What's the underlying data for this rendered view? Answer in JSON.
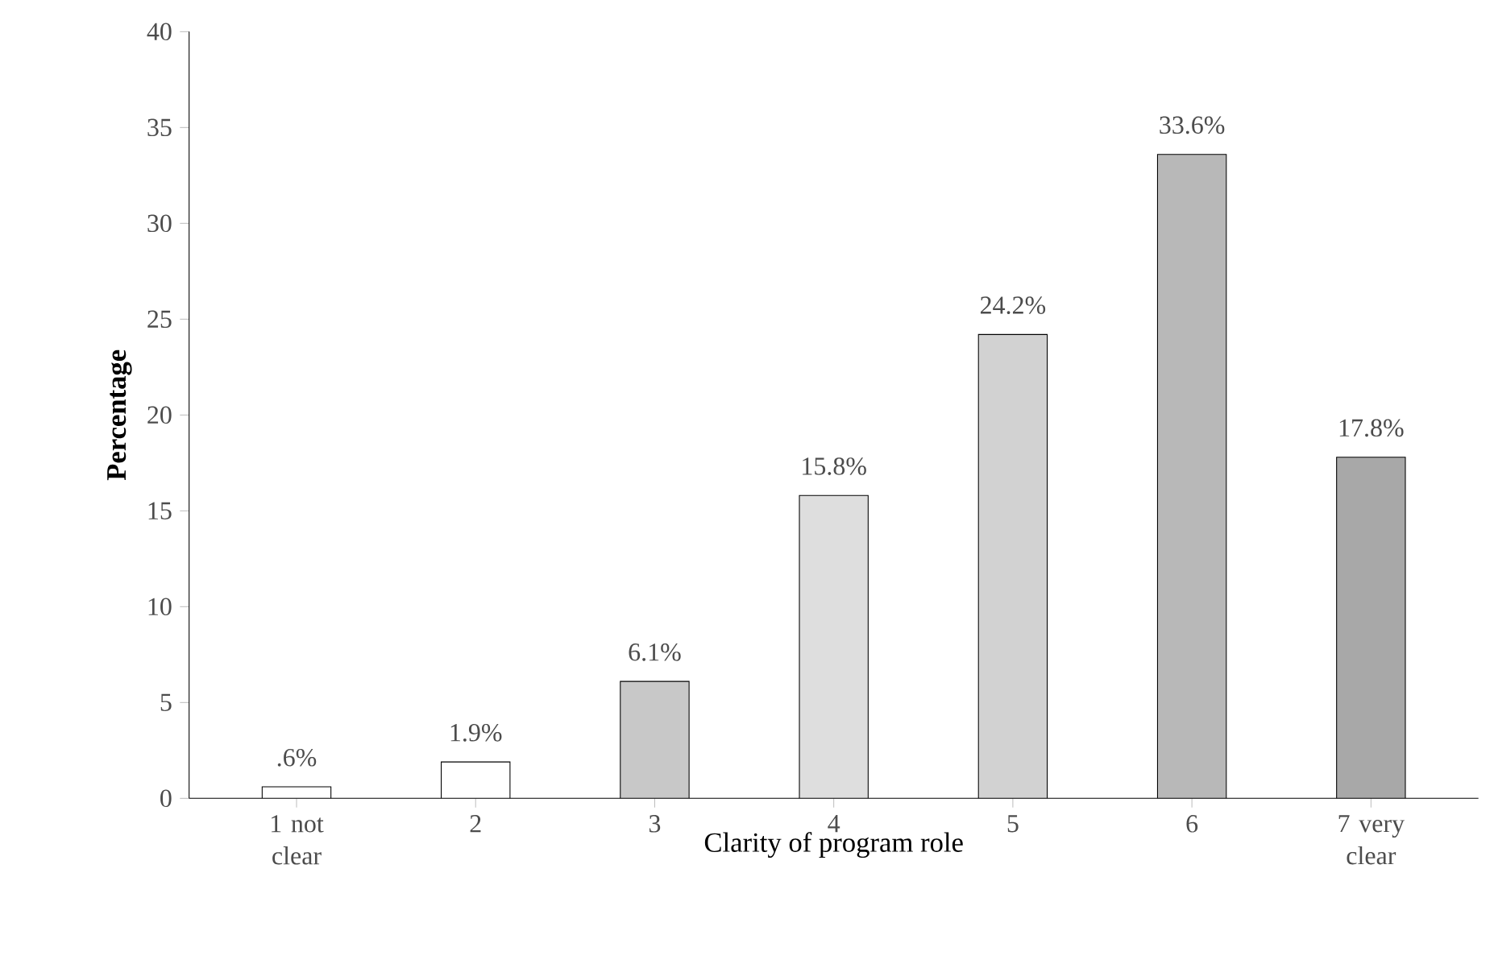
{
  "chart_data": {
    "type": "bar",
    "xlabel": "Clarity of program role",
    "ylabel": "Percentage",
    "categories": [
      "1 not clear",
      "2",
      "3",
      "4",
      "5",
      "6",
      "7 very clear"
    ],
    "values": [
      0.6,
      1.9,
      6.1,
      15.8,
      24.2,
      33.6,
      17.8
    ],
    "value_labels": [
      ".6%",
      "1.9%",
      "6.1%",
      "15.8%",
      "24.2%",
      "33.6%",
      "17.8%"
    ],
    "colors": [
      "#ffffff",
      "#ffffff",
      "#c8c8c8",
      "#dedede",
      "#d2d2d2",
      "#b8b8b8",
      "#a8a8a8"
    ],
    "ylim": [
      0,
      40
    ],
    "yticks": [
      0,
      5,
      10,
      15,
      20,
      25,
      30,
      35,
      40
    ],
    "grid": false
  }
}
